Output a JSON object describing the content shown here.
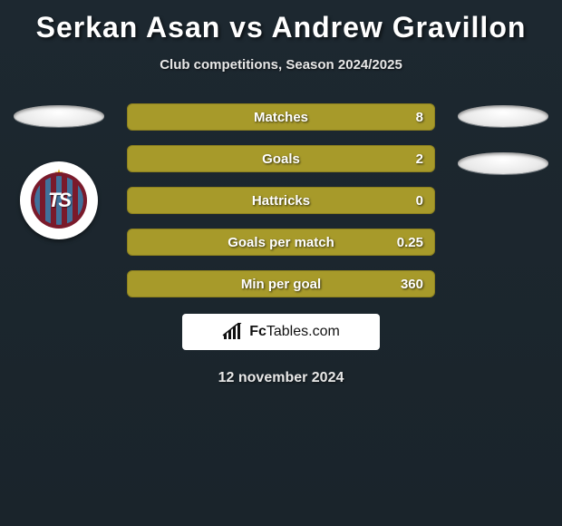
{
  "header": {
    "title": "Serkan Asan vs Andrew Gravillon",
    "subtitle": "Club competitions, Season 2024/2025"
  },
  "stats": {
    "bar_color": "#a79a2a",
    "bar_border": "#8c801f",
    "rows": [
      {
        "label": "Matches",
        "value": "8"
      },
      {
        "label": "Goals",
        "value": "2"
      },
      {
        "label": "Hattricks",
        "value": "0"
      },
      {
        "label": "Goals per match",
        "value": "0.25"
      },
      {
        "label": "Min per goal",
        "value": "360"
      }
    ]
  },
  "left_player": {
    "club_initials": "TS",
    "club_primary": "#7a1a2b",
    "club_secondary": "#3a7ba8",
    "badge_bg": "#ffffff"
  },
  "brand": {
    "name_bold": "Fc",
    "name_rest": "Tables",
    "suffix": ".com"
  },
  "footer": {
    "date": "12 november 2024"
  },
  "colors": {
    "page_bg_top": "#1d2830",
    "page_bg_bottom": "#1a242b",
    "text": "#ffffff",
    "subtext": "#e8e8e8",
    "ellipse": "#eaeaea"
  }
}
